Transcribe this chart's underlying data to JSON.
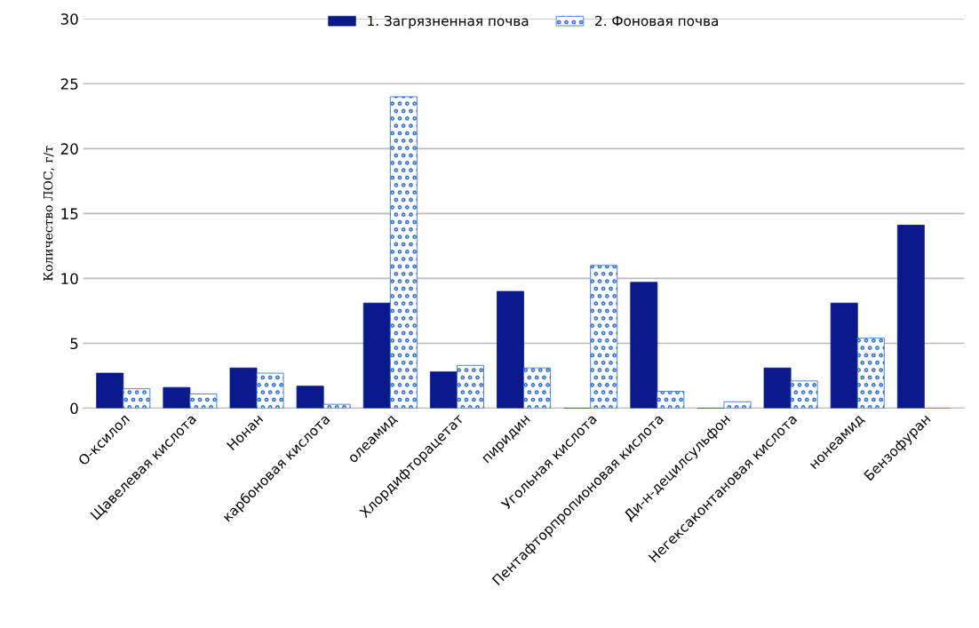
{
  "chart_data": {
    "type": "bar",
    "ylabel": "Количество ЛОС, г/т",
    "categories": [
      "О-ксилол",
      "Щавелевая кислота",
      "Нонан",
      "карбоновая кислота",
      "олеамид",
      "Хлордифторацетат",
      "пиридин",
      "Угольная кислота",
      "Пентафторпропионовая кислота",
      "Ди-н-децилсульфон",
      "Негексаконтановая кислота",
      "нонеамид",
      "Бензофуран"
    ],
    "series": [
      {
        "name": "1. Загрязненная почва",
        "color": "#0a1a8c",
        "values": [
          2.7,
          1.6,
          3.1,
          1.7,
          8.1,
          2.8,
          9.0,
          0,
          9.7,
          0,
          3.1,
          8.1,
          14.1
        ]
      },
      {
        "name": "2. Фоновая почва",
        "color": "#2f6fd6",
        "values": [
          1.5,
          1.1,
          2.7,
          0.3,
          24,
          3.3,
          3.1,
          11,
          1.3,
          0.5,
          2.1,
          5.4,
          0
        ]
      }
    ],
    "ylim": [
      0,
      30
    ],
    "yticks": [
      0,
      5,
      10,
      15,
      20,
      25,
      30
    ],
    "grid": "y",
    "legend": "top"
  }
}
